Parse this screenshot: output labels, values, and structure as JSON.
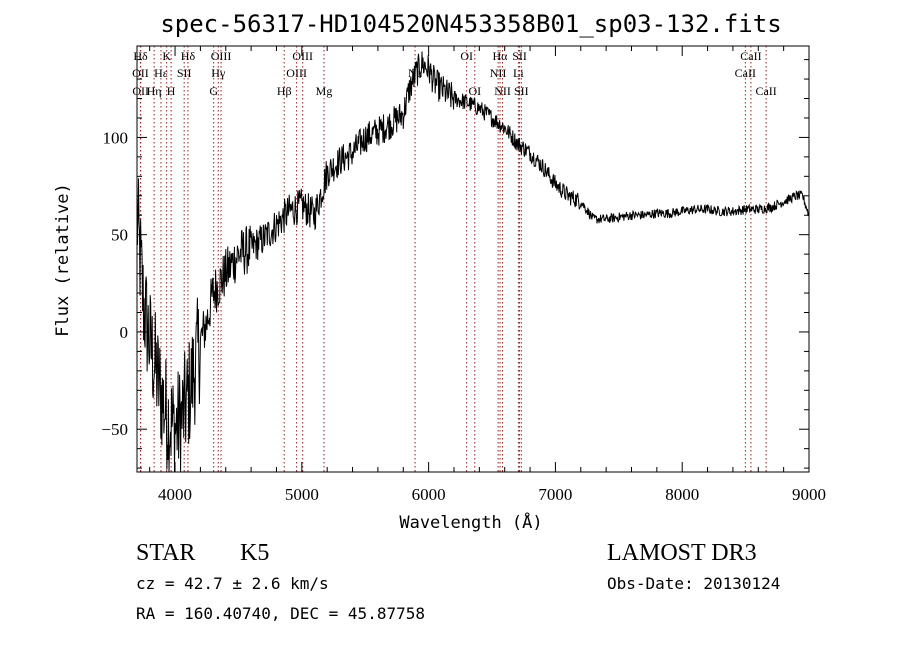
{
  "chart_data": {
    "type": "line",
    "title": "spec-56317-HD104520N453358B01_sp03-132.fits",
    "xlabel": "Wavelength (Å)",
    "ylabel": "Flux (relative)",
    "xlim": [
      3700,
      9000
    ],
    "ylim": [
      -72,
      147
    ],
    "x_ticks": [
      4000,
      5000,
      6000,
      7000,
      8000,
      9000
    ],
    "y_ticks": [
      -50,
      0,
      50,
      100
    ],
    "grid": false,
    "series": [
      {
        "x": [
          3700,
          3750,
          3800,
          3850,
          3900,
          3950,
          4000,
          4050,
          4100,
          4150,
          4200,
          4250,
          4300,
          4350,
          4400,
          4450,
          4500,
          4600,
          4700,
          4800,
          4900,
          5000,
          5100,
          5200,
          5300,
          5400,
          5500,
          5600,
          5700,
          5800,
          5850,
          5900,
          5950,
          6000,
          6050,
          6100,
          6150,
          6200,
          6300,
          6400,
          6500,
          6600,
          6700,
          6800,
          6900,
          7000,
          7100,
          7200,
          7300,
          7400,
          7500,
          7600,
          7700,
          7800,
          7900,
          8000,
          8100,
          8200,
          8300,
          8400,
          8500,
          8600,
          8700,
          8800,
          8900,
          8950,
          9000
        ],
        "values": [
          60,
          15,
          -5,
          -20,
          -35,
          -45,
          -50,
          -45,
          -35,
          -20,
          -5,
          5,
          20,
          25,
          30,
          35,
          40,
          43,
          48,
          55,
          62,
          65,
          60,
          82,
          88,
          92,
          100,
          103,
          107,
          112,
          125,
          133,
          138,
          135,
          128,
          125,
          122,
          120,
          118,
          115,
          110,
          105,
          97,
          92,
          85,
          76,
          70,
          67,
          58,
          58,
          59,
          60,
          60,
          61,
          61,
          62,
          63,
          63,
          62,
          62,
          63,
          63,
          64,
          67,
          70,
          70,
          60
        ]
      }
    ],
    "spectral_lines": [
      {
        "label": "Hδ",
        "wl": 3728,
        "row": 0
      },
      {
        "label": "OII",
        "wl": 3727,
        "row": 1
      },
      {
        "label": "OII",
        "wl": 3729,
        "row": 2
      },
      {
        "label": "Hε",
        "wl": 3889,
        "row": 1
      },
      {
        "label": "Hη",
        "wl": 3835,
        "row": 2
      },
      {
        "label": "K",
        "wl": 3934,
        "row": 0
      },
      {
        "label": "H",
        "wl": 3969,
        "row": 2
      },
      {
        "label": "SII",
        "wl": 4072,
        "row": 1
      },
      {
        "label": "Hδ",
        "wl": 4102,
        "row": 0
      },
      {
        "label": "OIII",
        "wl": 4363,
        "row": 0
      },
      {
        "label": "Hγ",
        "wl": 4341,
        "row": 1
      },
      {
        "label": "G",
        "wl": 4305,
        "row": 2
      },
      {
        "label": "Hβ",
        "wl": 4861,
        "row": 2
      },
      {
        "label": "OIII",
        "wl": 5007,
        "row": 0
      },
      {
        "label": "OIII",
        "wl": 4959,
        "row": 1
      },
      {
        "label": "Mg",
        "wl": 5175,
        "row": 2
      },
      {
        "label": "Na",
        "wl": 5893,
        "row": 1
      },
      {
        "label": "OI",
        "wl": 6300,
        "row": 0
      },
      {
        "label": "OI",
        "wl": 6364,
        "row": 2
      },
      {
        "label": "Hα",
        "wl": 6563,
        "row": 0
      },
      {
        "label": "NII",
        "wl": 6548,
        "row": 1
      },
      {
        "label": "NII",
        "wl": 6583,
        "row": 2
      },
      {
        "label": "SII",
        "wl": 6717,
        "row": 0
      },
      {
        "label": "Li",
        "wl": 6708,
        "row": 1
      },
      {
        "label": "SII",
        "wl": 6731,
        "row": 2
      },
      {
        "label": "CaII",
        "wl": 8542,
        "row": 0
      },
      {
        "label": "CaII",
        "wl": 8498,
        "row": 1
      },
      {
        "label": "CaII",
        "wl": 8662,
        "row": 2
      }
    ]
  },
  "info": {
    "object_class": "STAR",
    "subclass": "K5",
    "cz": "cz = 42.7 ± 2.6 km/s",
    "coords": "RA = 160.40740, DEC =  45.87758",
    "survey": "LAMOST DR3",
    "obs_date": "Obs-Date: 20130124"
  },
  "colors": {
    "line_marker": "#9b1c1c",
    "spectrum": "#000000",
    "axes": "#000000"
  }
}
